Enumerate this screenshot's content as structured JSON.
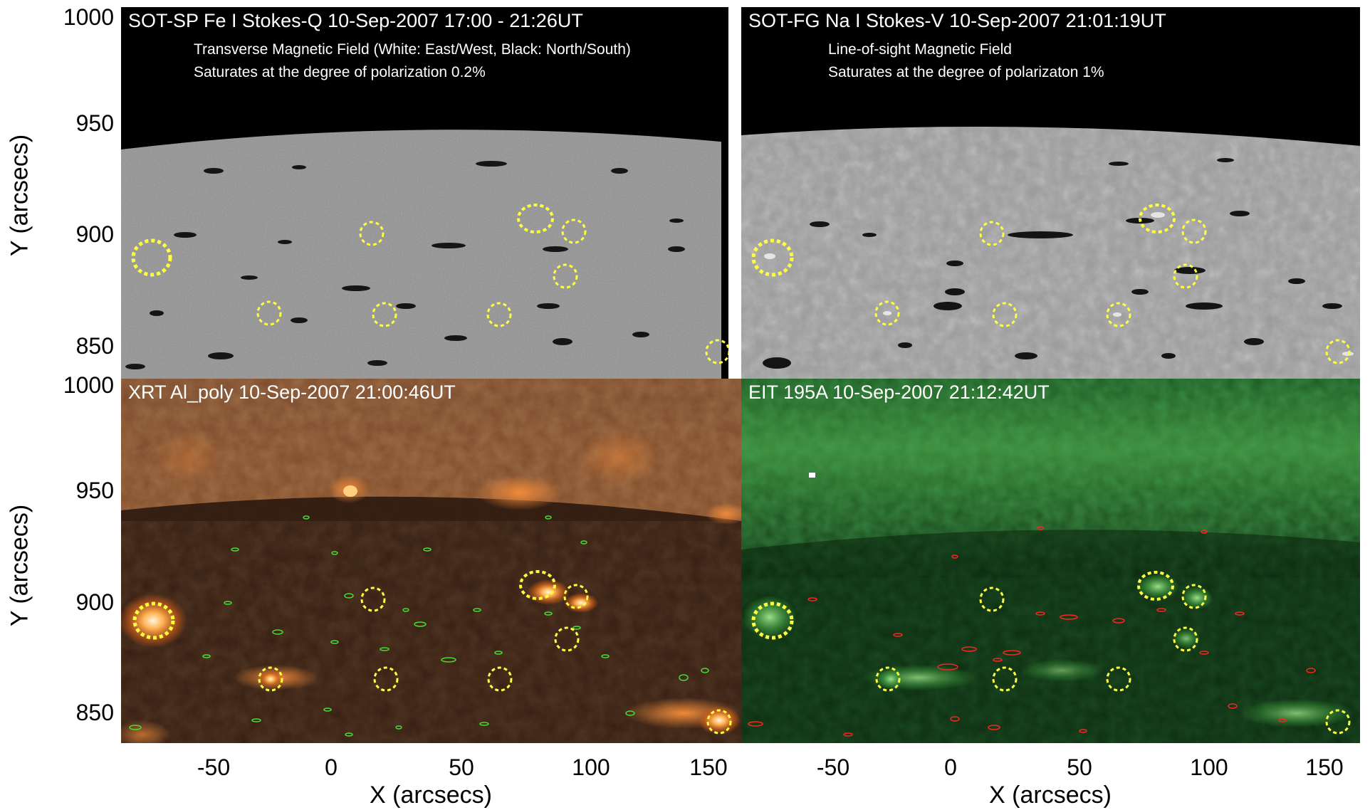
{
  "panels": {
    "top_left": {
      "title": "SOT-SP Fe I Stokes-Q 10-Sep-2007 17:00 - 21:26UT",
      "sub1": "Transverse Magnetic Field (White: East/West, Black: North/South)",
      "sub2": "Saturates at the degree of polarization 0.2%"
    },
    "top_right": {
      "title": "SOT-FG Na I Stokes-V 10-Sep-2007 21:01:19UT",
      "sub1": "Line-of-sight Magnetic Field",
      "sub2": "Saturates at the degree of polarizaton 1%"
    },
    "bottom_left": {
      "title": "XRT Al_poly 10-Sep-2007 21:00:46UT"
    },
    "bottom_right": {
      "title": "EIT 195A 10-Sep-2007 21:12:42UT"
    }
  },
  "axes": {
    "ylabel": "Y (arcsecs)",
    "xlabel": "X (arcsecs)",
    "yticks_top": [
      "1000",
      "950",
      "900",
      "850"
    ],
    "yticks_bottom": [
      "1000",
      "950",
      "900",
      "850"
    ],
    "xticks_left": [
      "-50",
      "0",
      "50",
      "100",
      "150"
    ],
    "xticks_right": [
      "-50",
      "0",
      "50",
      "100",
      "150"
    ]
  },
  "colors": {
    "marker": "#ffff40",
    "xrt_contour": "#44dd33",
    "eit_contour": "#ff2222"
  }
}
